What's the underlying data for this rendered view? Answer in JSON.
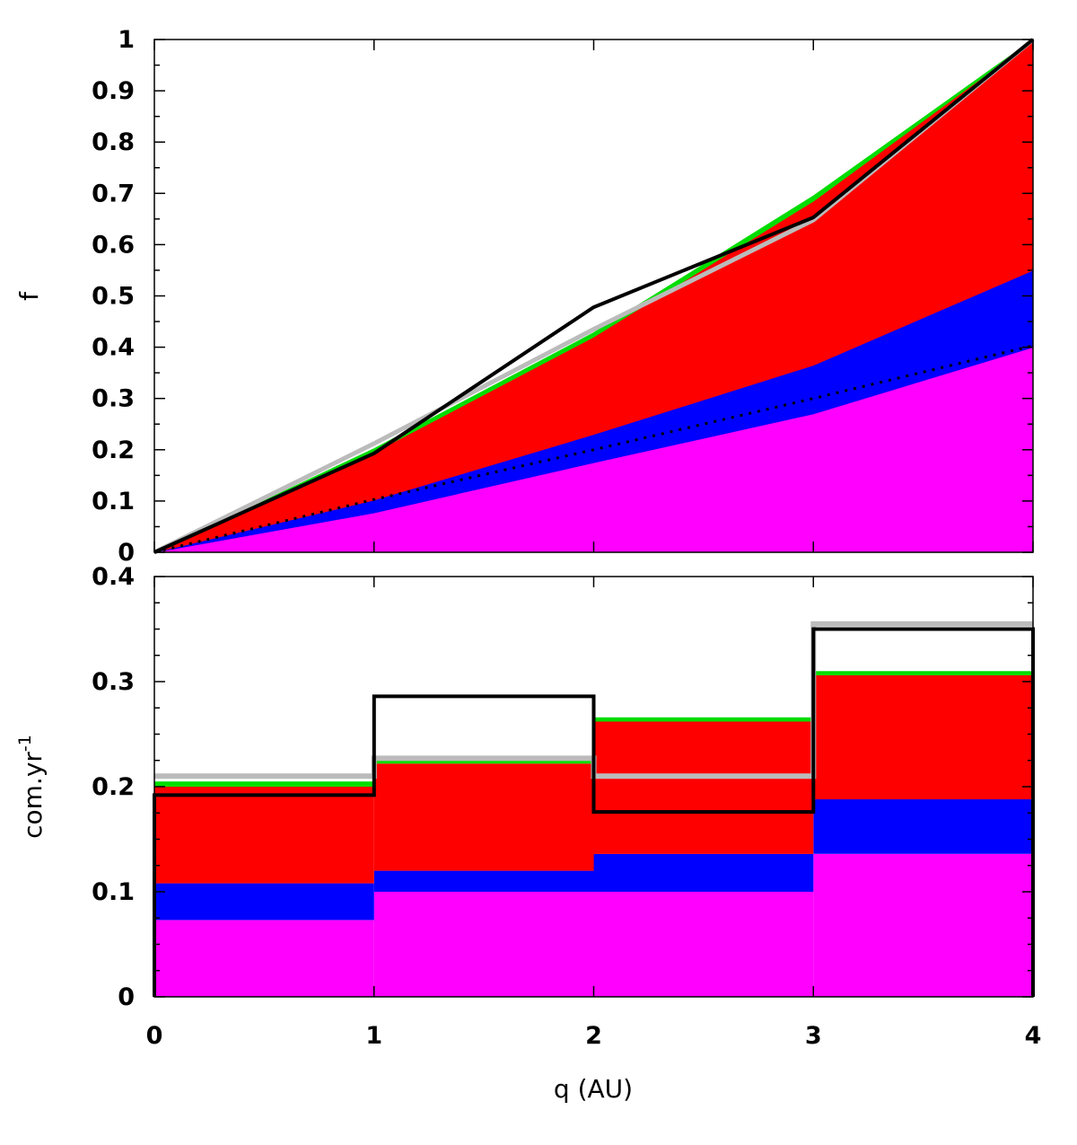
{
  "chart_data": [
    {
      "type": "area",
      "panel": "top",
      "title": "",
      "xlabel": "",
      "ylabel": "f",
      "xlim": [
        0,
        4
      ],
      "ylim": [
        0,
        1
      ],
      "grid": false,
      "x": [
        0,
        1,
        2,
        3,
        4
      ],
      "xticks": [
        "0",
        "1",
        "2",
        "3",
        "4"
      ],
      "yticks": [
        "0",
        "0.1",
        "0.2",
        "0.3",
        "0.4",
        "0.5",
        "0.6",
        "0.7",
        "0.8",
        "0.9",
        "1"
      ],
      "stack": [
        {
          "color": "#ff00ff",
          "values": [
            0,
            0.077,
            0.175,
            0.27,
            0.4
          ]
        },
        {
          "color": "#0000ff",
          "values": [
            0,
            0.025,
            0.055,
            0.095,
            0.15
          ]
        },
        {
          "color": "#ff0000",
          "values": [
            0,
            0.093,
            0.19,
            0.32,
            0.448
          ]
        },
        {
          "color": "#00dd00",
          "values": [
            0,
            0.007,
            0.008,
            0.01,
            0.002
          ]
        }
      ],
      "lines": [
        {
          "color": "#bbbbbb",
          "style": "solid",
          "values": [
            0,
            0.212,
            0.435,
            0.648,
            1.0
          ]
        },
        {
          "color": "#000000",
          "style": "solid",
          "values": [
            0,
            0.193,
            0.478,
            0.653,
            1.0
          ]
        },
        {
          "color": "#000000",
          "style": "dotted",
          "values": [
            0,
            0.103,
            0.2,
            0.3,
            0.403
          ]
        }
      ]
    },
    {
      "type": "area",
      "panel": "bottom",
      "title": "",
      "xlabel": "q (AU)",
      "ylabel": "com.yr",
      "ylabel_sup": "-1",
      "xlim": [
        0,
        4
      ],
      "ylim": [
        0,
        0.4
      ],
      "grid": false,
      "bins": [
        0,
        1,
        2,
        3,
        4
      ],
      "xticks": [
        "0",
        "1",
        "2",
        "3",
        "4"
      ],
      "yticks": [
        "0",
        "0.1",
        "0.2",
        "0.3",
        "0.4"
      ],
      "stack": [
        {
          "color": "#ff00ff",
          "values": [
            0.073,
            0.1,
            0.1,
            0.136
          ]
        },
        {
          "color": "#0000ff",
          "values": [
            0.035,
            0.02,
            0.036,
            0.052
          ]
        },
        {
          "color": "#ff0000",
          "values": [
            0.092,
            0.102,
            0.126,
            0.118
          ]
        },
        {
          "color": "#00dd00",
          "values": [
            0.005,
            0.004,
            0.004,
            0.004
          ]
        }
      ],
      "lines": [
        {
          "color": "#bbbbbb",
          "style": "solid",
          "values": [
            0.21,
            0.227,
            0.21,
            0.355
          ]
        },
        {
          "color": "#000000",
          "style": "solid",
          "values": [
            0.192,
            0.286,
            0.176,
            0.35
          ]
        }
      ]
    }
  ]
}
